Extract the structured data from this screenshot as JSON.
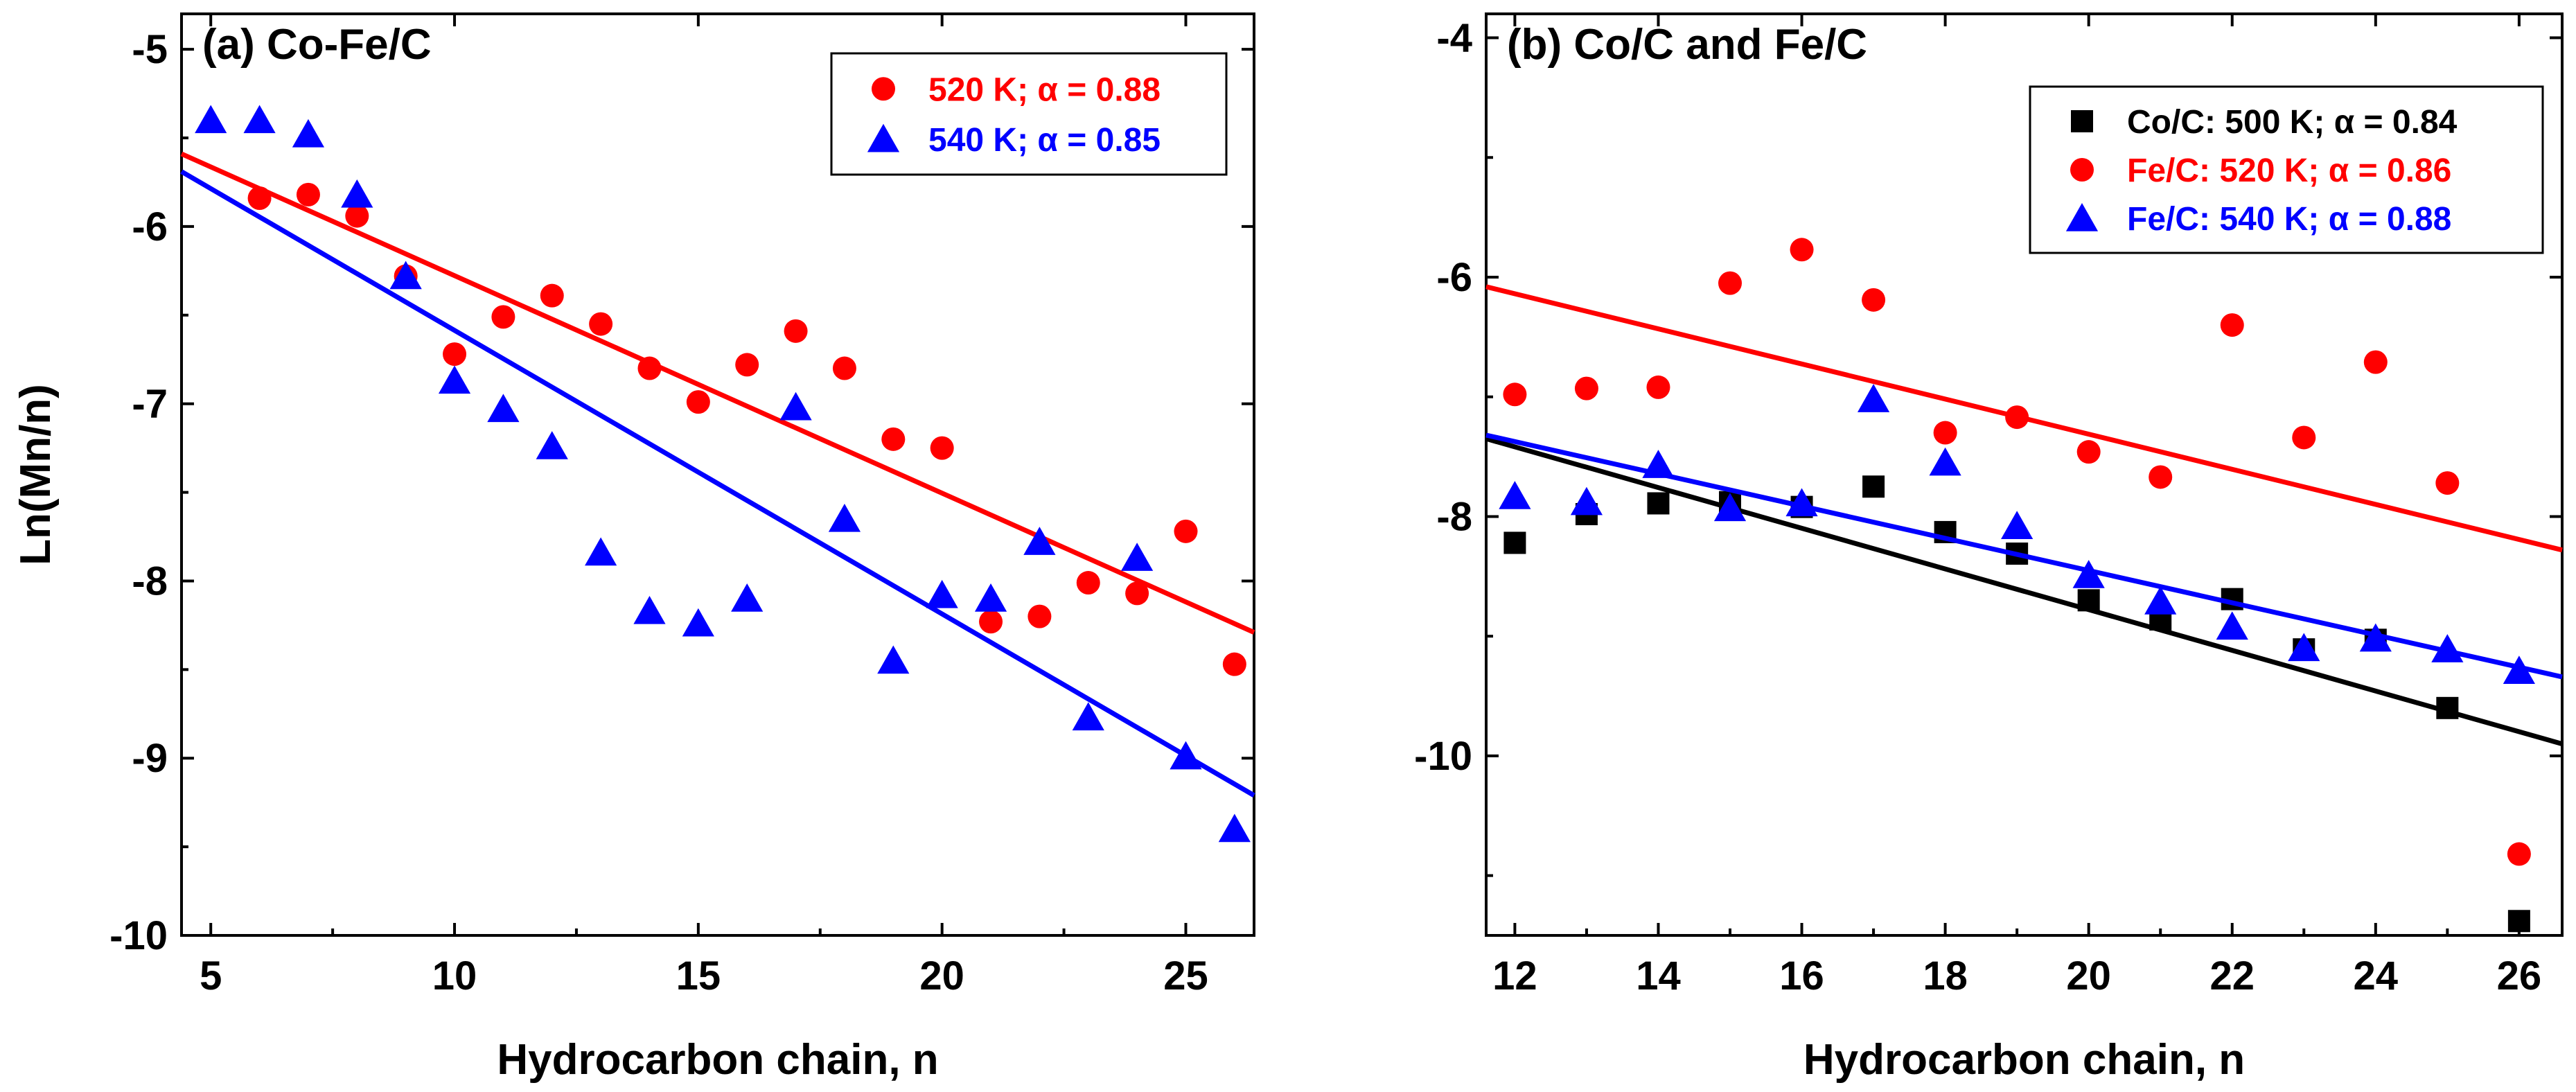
{
  "colors": {
    "red": "#ff0000",
    "blue": "#0000ff",
    "black": "#000000"
  },
  "y_axis_label": "Ln(Mn/n)",
  "chart_data": [
    {
      "id": "a",
      "type": "scatter",
      "title": "(a) Co-Fe/C",
      "xlabel": "Hydrocarbon chain, n",
      "ylabel": "Ln(Mn/n)",
      "xlim": [
        4.4,
        26.4
      ],
      "ylim": [
        -10,
        -4.8
      ],
      "xticks": [
        5,
        10,
        15,
        20,
        25
      ],
      "xtick_labels": [
        "5",
        "10",
        "15",
        "20",
        "25"
      ],
      "yticks": [
        -10,
        -9,
        -8,
        -7,
        -6,
        -5
      ],
      "ytick_labels": [
        "-10",
        "-9",
        "-8",
        "-7",
        "-6",
        "-5"
      ],
      "legend_position": "top-right",
      "series": [
        {
          "name": "520 K; α = 0.88",
          "marker": "circle",
          "color": "#ff0000",
          "x": [
            6,
            7,
            8,
            9,
            10,
            11,
            12,
            13,
            14,
            15,
            16,
            17,
            18,
            19,
            20,
            21,
            22,
            23,
            24,
            25,
            26
          ],
          "y": [
            -5.84,
            -5.82,
            -5.94,
            -6.28,
            -6.72,
            -6.51,
            -6.39,
            -6.55,
            -6.8,
            -6.99,
            -6.78,
            -6.59,
            -6.8,
            -7.2,
            -7.25,
            -8.23,
            -8.2,
            -8.01,
            -8.07,
            -7.72,
            -8.47
          ],
          "fit": {
            "x": [
              4.4,
              26.4
            ],
            "y": [
              -5.59,
              -8.29
            ]
          }
        },
        {
          "name": "540 K; α = 0.85",
          "marker": "triangle",
          "color": "#0000ff",
          "x": [
            5,
            6,
            7,
            8,
            9,
            10,
            11,
            12,
            13,
            14,
            15,
            16,
            17,
            18,
            19,
            20,
            21,
            22,
            23,
            24,
            25,
            26
          ],
          "y": [
            -5.4,
            -5.4,
            -5.48,
            -5.82,
            -6.28,
            -6.87,
            -7.03,
            -7.24,
            -7.84,
            -8.17,
            -8.24,
            -8.1,
            -7.02,
            -7.65,
            -8.45,
            -8.08,
            -8.1,
            -7.78,
            -8.77,
            -7.87,
            -8.99,
            -9.4
          ],
          "fit": {
            "x": [
              4.4,
              26.4
            ],
            "y": [
              -5.69,
              -9.21
            ]
          }
        }
      ]
    },
    {
      "id": "b",
      "type": "scatter",
      "title": "(b) Co/C and Fe/C",
      "xlabel": "Hydrocarbon chain, n",
      "ylabel": "",
      "xlim": [
        11.6,
        26.6
      ],
      "ylim": [
        -11.5,
        -3.8
      ],
      "xticks": [
        12,
        14,
        16,
        18,
        20,
        22,
        24,
        26
      ],
      "xtick_labels": [
        "12",
        "14",
        "16",
        "18",
        "20",
        "22",
        "24",
        "26"
      ],
      "yticks": [
        -10,
        -8,
        -6,
        -4
      ],
      "ytick_labels": [
        "-10",
        "-8",
        "-6",
        "-4"
      ],
      "legend_position": "top-right",
      "series": [
        {
          "name": "Co/C: 500 K; α = 0.84",
          "marker": "square",
          "color": "#000000",
          "x": [
            12,
            13,
            14,
            15,
            16,
            17,
            18,
            19,
            20,
            21,
            22,
            23,
            24,
            25,
            26
          ],
          "y": [
            -8.22,
            -7.98,
            -7.89,
            -7.88,
            -7.92,
            -7.75,
            -8.13,
            -8.31,
            -8.7,
            -8.86,
            -8.69,
            -9.11,
            -9.03,
            -9.6,
            -11.38
          ],
          "fit": {
            "x": [
              11.6,
              26.6
            ],
            "y": [
              -7.35,
              -9.9
            ]
          }
        },
        {
          "name": "Fe/C: 520 K; α = 0.86",
          "marker": "circle",
          "color": "#ff0000",
          "x": [
            12,
            13,
            14,
            15,
            16,
            17,
            18,
            19,
            20,
            21,
            22,
            23,
            24,
            25,
            26
          ],
          "y": [
            -6.98,
            -6.93,
            -6.92,
            -6.05,
            -5.77,
            -6.19,
            -7.3,
            -7.17,
            -7.46,
            -7.67,
            -6.4,
            -7.34,
            -6.71,
            -7.72,
            -10.82
          ],
          "fit": {
            "x": [
              11.6,
              26.6
            ],
            "y": [
              -6.08,
              -8.28
            ]
          }
        },
        {
          "name": "Fe/C: 540 K; α = 0.88",
          "marker": "triangle",
          "color": "#0000ff",
          "x": [
            12,
            13,
            14,
            15,
            16,
            17,
            18,
            19,
            20,
            21,
            22,
            23,
            24,
            25,
            26
          ],
          "y": [
            -7.83,
            -7.88,
            -7.57,
            -7.93,
            -7.89,
            -7.02,
            -7.55,
            -8.08,
            -8.49,
            -8.71,
            -8.92,
            -9.1,
            -9.02,
            -9.11,
            -9.29
          ],
          "fit": {
            "x": [
              11.6,
              26.6
            ],
            "y": [
              -7.32,
              -9.34
            ]
          }
        }
      ]
    }
  ]
}
